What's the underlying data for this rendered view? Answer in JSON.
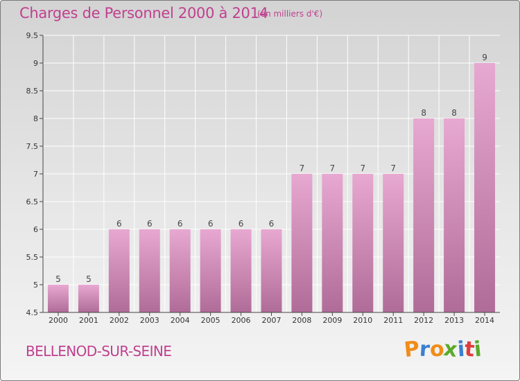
{
  "header": {
    "title": "Charges de Personnel 2000 à 2014",
    "subtitle": "(en milliers d'€)"
  },
  "footer": {
    "town": "BELLENOD-SUR-SEINE",
    "logo_letters": [
      "P",
      "r",
      "o",
      "x",
      "i",
      "t",
      "i"
    ],
    "logo_colors": [
      "#f08c1a",
      "#3a7fd0",
      "#f08c1a",
      "#5aaa2a",
      "#3a7fd0",
      "#e03c3c",
      "#5aaa2a"
    ]
  },
  "colors": {
    "accent": "#c0408f",
    "bar_top": "#e7a8d1",
    "bar_bottom": "#b06c98",
    "grid": "#ffffff",
    "axis": "#444444"
  },
  "chart_data": {
    "type": "bar",
    "categories": [
      "2000",
      "2001",
      "2002",
      "2003",
      "2004",
      "2005",
      "2006",
      "2007",
      "2008",
      "2009",
      "2010",
      "2011",
      "2012",
      "2013",
      "2014"
    ],
    "values": [
      5,
      5,
      6,
      6,
      6,
      6,
      6,
      6,
      7,
      7,
      7,
      7,
      8,
      8,
      9
    ],
    "data_labels": [
      "5",
      "5",
      "6",
      "6",
      "6",
      "6",
      "6",
      "6",
      "7",
      "7",
      "7",
      "7",
      "8",
      "8",
      "9"
    ],
    "y_ticks": [
      4.5,
      5,
      5.5,
      6,
      6.5,
      7,
      7.5,
      8,
      8.5,
      9,
      9.5
    ],
    "ylim": [
      4.5,
      9.5
    ],
    "grid": true,
    "title": "Charges de Personnel 2000 à 2014",
    "xlabel": "",
    "ylabel": ""
  }
}
